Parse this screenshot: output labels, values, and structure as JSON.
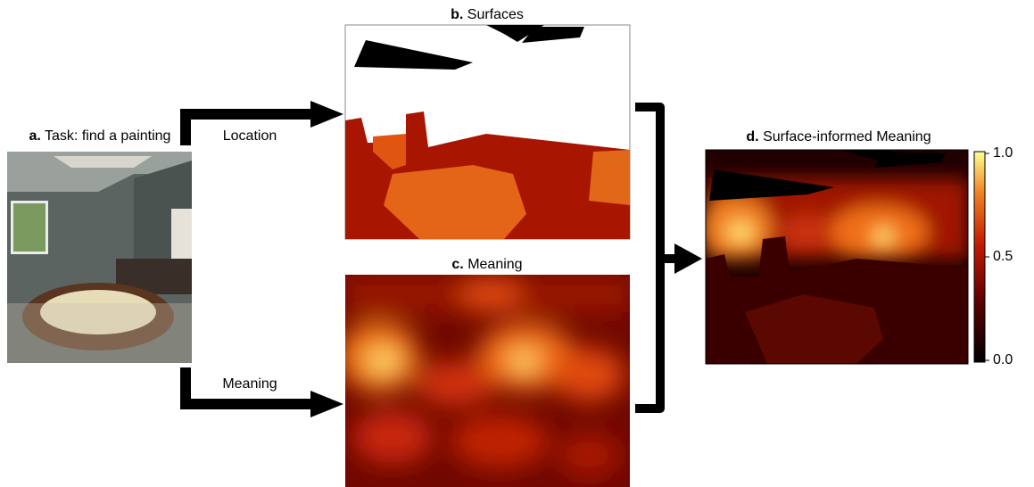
{
  "panels": [
    {
      "letter": "a.",
      "title": "Task: find a painting"
    },
    {
      "letter": "b.",
      "title": "Surfaces"
    },
    {
      "letter": "c.",
      "title": "Meaning"
    },
    {
      "letter": "d.",
      "title": "Surface-informed Meaning"
    }
  ],
  "arrows": {
    "top": "Location",
    "bottom": "Meaning"
  },
  "colorbar": {
    "ticks": [
      {
        "value": 1,
        "label": "1.0"
      },
      {
        "value": 0.5,
        "label": "0.5"
      },
      {
        "value": 0,
        "label": "0.0"
      }
    ]
  }
}
